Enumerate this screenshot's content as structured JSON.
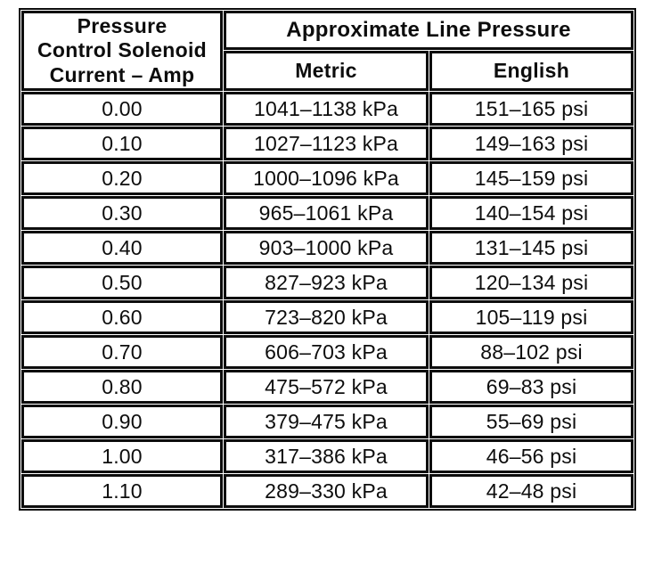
{
  "table": {
    "header": {
      "solenoid_current": "Pressure\nControl Solenoid\nCurrent – Amp",
      "line_pressure": "Approximate Line Pressure",
      "metric": "Metric",
      "english": "English"
    },
    "rows": [
      [
        "0.00",
        "1041–1138 kPa",
        "151–165 psi"
      ],
      [
        "0.10",
        "1027–1123 kPa",
        "149–163 psi"
      ],
      [
        "0.20",
        "1000–1096 kPa",
        "145–159 psi"
      ],
      [
        "0.30",
        "965–1061 kPa",
        "140–154 psi"
      ],
      [
        "0.40",
        "903–1000 kPa",
        "131–145 psi"
      ],
      [
        "0.50",
        "827–923 kPa",
        "120–134 psi"
      ],
      [
        "0.60",
        "723–820 kPa",
        "105–119 psi"
      ],
      [
        "0.70",
        "606–703 kPa",
        "88–102 psi"
      ],
      [
        "0.80",
        "475–572 kPa",
        "69–83 psi"
      ],
      [
        "0.90",
        "379–475 kPa",
        "55–69 psi"
      ],
      [
        "1.00",
        "317–386 kPa",
        "46–56 psi"
      ],
      [
        "1.10",
        "289–330 kPa",
        "42–48 psi"
      ]
    ],
    "colors": {
      "ink": "#0d0d0d",
      "paper": "#ffffff"
    }
  }
}
